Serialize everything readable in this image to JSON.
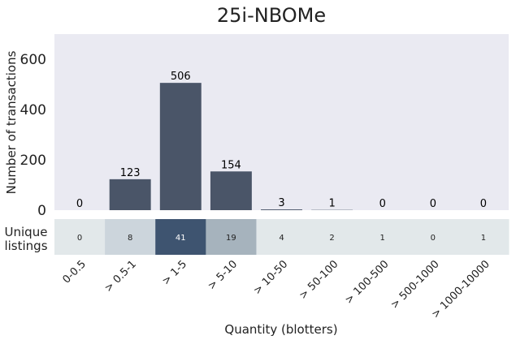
{
  "chart_data": {
    "type": "bar",
    "title": "25i-NBOMe",
    "xlabel": "Quantity (blotters)",
    "ylabel": "Number of transactions",
    "ylim": [
      0,
      700
    ],
    "yticks": [
      0,
      200,
      400,
      600
    ],
    "grid": false,
    "categories": [
      "0-0.5",
      "> 0.5-1",
      "> 1-5",
      "> 5-10",
      "> 10-50",
      "> 50-100",
      "> 100-500",
      "> 500-1000",
      "> 1000-10000"
    ],
    "values": [
      0,
      123,
      506,
      154,
      3,
      1,
      0,
      0,
      0
    ],
    "bar_color": "#4a5568",
    "panel_background": "#eaeaf2",
    "listings": {
      "label": "Unique\nlistings",
      "values": [
        0,
        8,
        41,
        19,
        4,
        2,
        1,
        0,
        1
      ],
      "colors": [
        "#e2e8ea",
        "#ccd5dc",
        "#3e5470",
        "#a6b3bd",
        "#e2e8ea",
        "#e2e8ea",
        "#e2e8ea",
        "#e2e8ea",
        "#e2e8ea"
      ],
      "text_colors": [
        "#222222",
        "#222222",
        "#ffffff",
        "#222222",
        "#222222",
        "#222222",
        "#222222",
        "#222222",
        "#222222"
      ]
    }
  }
}
